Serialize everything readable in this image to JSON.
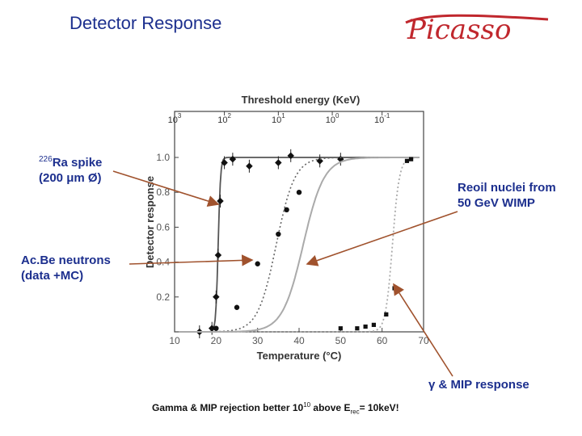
{
  "slide": {
    "title": "Detector Response",
    "logo_text": "Picasso",
    "colors": {
      "title": "#1c2f8e",
      "logo": "#c0272d",
      "arrow": "#a0522d",
      "curve_dark": "#555555",
      "curve_light": "#aaaaaa"
    }
  },
  "annotations": {
    "ra_iso": "226",
    "ra_line1": "Ra spike",
    "ra_line2": "(200 μm Ø)",
    "acbe_line1": "Ac.Be neutrons",
    "acbe_line2": "(data +MC)",
    "recoil_line1": "Reoil nuclei from",
    "recoil_line2": "50 GeV WIMP",
    "gamma_symbol": "γ",
    "gamma_text": " & MIP response"
  },
  "footnote": {
    "main": "Gamma & MIP rejection better 10",
    "exp": "10",
    "mid": " above  E",
    "sub": "rec",
    "tail": "= 10keV!"
  },
  "chart_data": {
    "type": "line",
    "xlabel": "Temperature (°C)",
    "ylabel": "Detector response",
    "top_axis_label": "Threshold energy (KeV)",
    "xlim": [
      10,
      70
    ],
    "ylim": [
      0,
      1.05
    ],
    "x_ticks": [
      "10",
      "20",
      "30",
      "40",
      "50",
      "60",
      "70"
    ],
    "y_ticks": [
      "0.2",
      "0.4",
      "0.6",
      "0.8",
      "1.0"
    ],
    "top_ticks": [
      {
        "base": "10",
        "exp": "3",
        "at_temp": 10
      },
      {
        "base": "10",
        "exp": "2",
        "at_temp": 22
      },
      {
        "base": "10",
        "exp": "1",
        "at_temp": 35
      },
      {
        "base": "10",
        "exp": "0",
        "at_temp": 48
      },
      {
        "base": "10",
        "exp": "-1",
        "at_temp": 60
      }
    ],
    "grid": false,
    "series": [
      {
        "style": "solid-dark",
        "markers": "diamond-with-errorbars",
        "curve": {
          "t0": 20.5,
          "k": 3.5
        },
        "points": [
          [
            16,
            0.0
          ],
          [
            19,
            0.02
          ],
          [
            20,
            0.2
          ],
          [
            20.5,
            0.44
          ],
          [
            21,
            0.75
          ],
          [
            22,
            0.97
          ],
          [
            24,
            0.99
          ],
          [
            28,
            0.95
          ],
          [
            35,
            0.97
          ],
          [
            38,
            1.01
          ],
          [
            45,
            0.98
          ],
          [
            50,
            0.99
          ]
        ]
      },
      {
        "style": "dotted-dark",
        "markers": "circle",
        "curve": {
          "t0": 34.5,
          "k": 0.45
        },
        "points": [
          [
            20,
            0.02
          ],
          [
            25,
            0.14
          ],
          [
            30,
            0.39
          ],
          [
            35,
            0.56
          ],
          [
            37,
            0.7
          ],
          [
            40,
            0.8
          ]
        ]
      },
      {
        "style": "solid-light",
        "markers": "none",
        "curve": {
          "t0": 41,
          "k": 0.4
        },
        "points": []
      },
      {
        "style": "dotted-light",
        "markers": "square",
        "curve": {
          "t0": 62.5,
          "k": 1.2
        },
        "points": [
          [
            50,
            0.02
          ],
          [
            54,
            0.02
          ],
          [
            56,
            0.03
          ],
          [
            58,
            0.04
          ],
          [
            61,
            0.1
          ],
          [
            63,
            0.25
          ],
          [
            66,
            0.98
          ],
          [
            67,
            0.99
          ]
        ]
      }
    ]
  }
}
